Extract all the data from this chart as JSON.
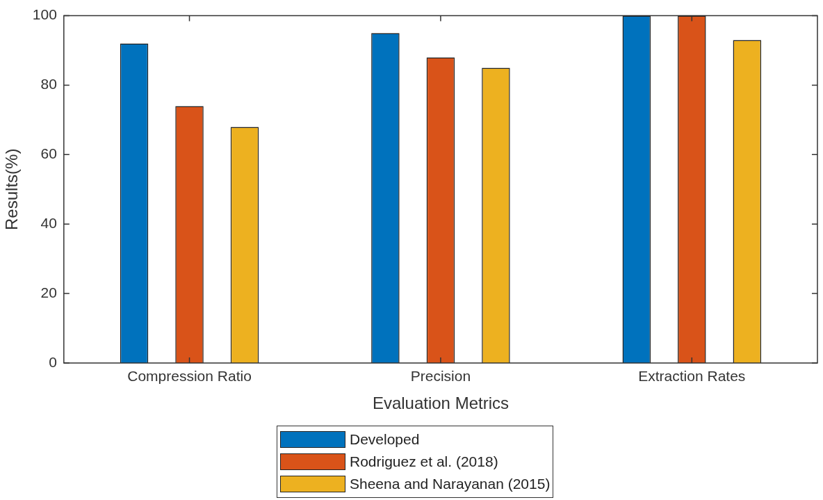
{
  "chart_data": {
    "type": "bar",
    "xlabel": "Evaluation Metrics",
    "ylabel": "Results(%)",
    "categories": [
      "Compression Ratio",
      "Precision",
      "Extraction Rates"
    ],
    "series": [
      {
        "name": "Developed",
        "color": "#0072bd",
        "values": [
          92,
          95,
          100
        ]
      },
      {
        "name": "Rodriguez et al. (2018)",
        "color": "#d95319",
        "values": [
          74,
          88,
          100
        ]
      },
      {
        "name": "Sheena and Narayanan (2015)",
        "color": "#edb120",
        "values": [
          68,
          85,
          93
        ]
      }
    ],
    "ylim": [
      0,
      100
    ],
    "yticks": [
      0,
      20,
      40,
      60,
      80,
      100
    ],
    "grid": false,
    "legend": "bottom"
  }
}
